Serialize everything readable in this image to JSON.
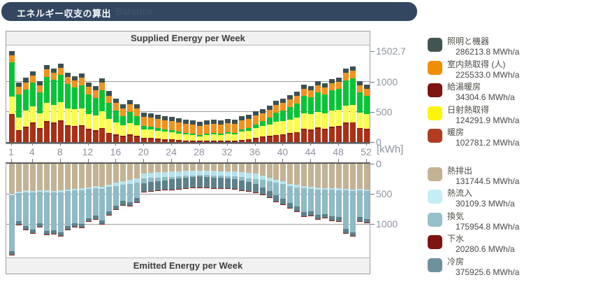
{
  "header": {
    "title": "エネルギー収支の算出",
    "watermark": "Balance"
  },
  "colors": {
    "header_bg": "#334760",
    "strip_bg": "#f1f1f1",
    "axis_text": "#8d94a0",
    "axis_line": "#5c5c5c",
    "grid": "#9b9b9b",
    "box_border": "#9e9e9e"
  },
  "legend": {
    "groups": [
      {
        "id": "supplied",
        "items": [
          {
            "label": "照明と機器",
            "value_text": "286213.8 MWh/a",
            "color": "#425553"
          },
          {
            "label": "室内熱取得 (人)",
            "value_text": "225533.0 MWh/a",
            "color": "#ef8e04"
          },
          {
            "label": "給湯暖房",
            "value_text": "34304.6 MWh/a",
            "color": "#7e1312"
          },
          {
            "label": "日射熱取得",
            "value_text": "124291.9 MWh/a",
            "color": "#fbf60b"
          },
          {
            "label": "暖房",
            "value_text": "102781.2 MWh/a",
            "color": "#b23d22"
          }
        ]
      },
      {
        "id": "emitted",
        "items": [
          {
            "label": "熱排出",
            "value_text": "131744.5 MWh/a",
            "color": "#c3b294"
          },
          {
            "label": "熱流入",
            "value_text": "30109.3 MWh/a",
            "color": "#c6edf5"
          },
          {
            "label": "換気",
            "value_text": "175954.8 MWh/a",
            "color": "#96c0cb"
          },
          {
            "label": "下水",
            "value_text": "20280.6 MWh/a",
            "color": "#7e1312"
          },
          {
            "label": "冷房",
            "value_text": "375925.6 MWh/a",
            "color": "#6f919d"
          }
        ]
      }
    ]
  },
  "chart_data": [
    {
      "type": "bar",
      "stacked": true,
      "title": "Supplied Energy per Week",
      "unit": "kWh",
      "x_label": "week",
      "x_ticks": [
        1,
        4,
        8,
        12,
        16,
        20,
        24,
        28,
        32,
        36,
        40,
        44,
        48,
        52
      ],
      "weeks": 52,
      "gridlines": [
        500,
        1000
      ],
      "y_axis": {
        "side": "right",
        "unit": "[kWh]",
        "ticks": [
          {
            "label": "0",
            "value": 0
          },
          {
            "label": "500",
            "value": 500
          },
          {
            "label": "1000",
            "value": 1000
          },
          {
            "label": "1502.7",
            "value": 1502.7
          }
        ]
      },
      "series": [
        {
          "name": "暖房",
          "color": "#a93016",
          "values": [
            448,
            180,
            230,
            300,
            210,
            330,
            300,
            340,
            260,
            250,
            255,
            195,
            175,
            215,
            135,
            105,
            85,
            105,
            85,
            50,
            50,
            40,
            25,
            25,
            10,
            0,
            0,
            0,
            0,
            0,
            0,
            0,
            0,
            20,
            30,
            52,
            72,
            85,
            101,
            111,
            129,
            147,
            199,
            190,
            222,
            202,
            232,
            245,
            299,
            309,
            217,
            199
          ]
        },
        {
          "name": "給湯暖房",
          "color": "#8c1a12",
          "values": [
            20,
            20,
            20,
            20,
            20,
            20,
            20,
            20,
            20,
            20,
            20,
            20,
            20,
            20,
            20,
            20,
            20,
            20,
            20,
            20,
            20,
            20,
            20,
            20,
            20,
            20,
            20,
            20,
            20,
            20,
            20,
            20,
            20,
            20,
            20,
            20,
            20,
            20,
            20,
            20,
            20,
            20,
            20,
            20,
            20,
            20,
            20,
            20,
            20,
            20,
            20,
            20
          ]
        },
        {
          "name": "日射熱取得",
          "color": "#fcfc4c",
          "values": [
            290,
            210,
            270,
            270,
            250,
            300,
            290,
            300,
            280,
            270,
            280,
            250,
            240,
            270,
            230,
            200,
            170,
            190,
            170,
            140,
            135,
            130,
            125,
            120,
            115,
            105,
            95,
            75,
            95,
            105,
            95,
            115,
            105,
            130,
            140,
            160,
            170,
            185,
            210,
            215,
            225,
            235,
            255,
            250,
            260,
            255,
            265,
            265,
            285,
            290,
            255,
            245
          ]
        },
        {
          "name": "unlabeled (green)",
          "color": "#07c436",
          "values": [
            560,
            380,
            350,
            395,
            340,
            430,
            420,
            450,
            400,
            360,
            380,
            320,
            300,
            350,
            260,
            200,
            150,
            180,
            150,
            60,
            50,
            45,
            40,
            35,
            30,
            28,
            25,
            20,
            25,
            28,
            25,
            30,
            28,
            40,
            45,
            60,
            80,
            110,
            150,
            170,
            200,
            230,
            290,
            280,
            320,
            310,
            340,
            350,
            420,
            440,
            330,
            300
          ]
        },
        {
          "name": "室内熱取得 (人)",
          "color": "#f0941e",
          "values": [
            120,
            120,
            120,
            120,
            120,
            120,
            120,
            120,
            120,
            120,
            125,
            125,
            125,
            125,
            125,
            125,
            135,
            135,
            135,
            150,
            150,
            150,
            150,
            150,
            150,
            150,
            150,
            150,
            150,
            150,
            150,
            150,
            150,
            150,
            150,
            150,
            135,
            135,
            135,
            135,
            135,
            135,
            120,
            120,
            120,
            120,
            120,
            120,
            120,
            120,
            120,
            120
          ]
        },
        {
          "name": "照明と機器",
          "color": "#3d5052",
          "values": [
            65,
            70,
            70,
            70,
            70,
            70,
            70,
            70,
            70,
            70,
            70,
            70,
            70,
            70,
            70,
            70,
            70,
            70,
            70,
            70,
            70,
            70,
            70,
            70,
            70,
            70,
            70,
            70,
            70,
            70,
            70,
            70,
            70,
            70,
            70,
            70,
            70,
            70,
            70,
            70,
            70,
            70,
            70,
            70,
            70,
            70,
            70,
            70,
            70,
            70,
            70,
            70
          ]
        }
      ]
    },
    {
      "type": "bar",
      "stacked": true,
      "inverted": true,
      "title": "Emitted Energy per Week",
      "unit": "kWh",
      "weeks": 52,
      "gridlines": [
        500,
        1000
      ],
      "y_axis": {
        "side": "right",
        "ticks": [
          {
            "label": "0",
            "value": 0
          },
          {
            "label": "500",
            "value": 500
          },
          {
            "label": "1000",
            "value": 1000
          }
        ]
      },
      "series": [
        {
          "name": "熱排出",
          "color": "#c3b294",
          "values": [
            500,
            460,
            445,
            450,
            435,
            445,
            450,
            445,
            430,
            420,
            410,
            390,
            370,
            380,
            345,
            315,
            285,
            270,
            240,
            160,
            150,
            140,
            135,
            130,
            125,
            120,
            118,
            115,
            118,
            120,
            122,
            125,
            128,
            140,
            150,
            165,
            195,
            230,
            265,
            295,
            330,
            350,
            370,
            385,
            395,
            400,
            405,
            410,
            420,
            430,
            415,
            425
          ]
        },
        {
          "name": "熱流入",
          "color": "#b5e3ee",
          "values": [
            20,
            25,
            25,
            25,
            25,
            25,
            25,
            25,
            25,
            25,
            30,
            30,
            35,
            35,
            40,
            50,
            60,
            65,
            70,
            80,
            85,
            90,
            88,
            85,
            80,
            78,
            75,
            70,
            72,
            75,
            75,
            78,
            80,
            85,
            88,
            85,
            75,
            60,
            50,
            45,
            40,
            38,
            35,
            30,
            30,
            28,
            25,
            25,
            22,
            22,
            25,
            22
          ]
        },
        {
          "name": "換気",
          "color": "#8fbac6",
          "values": [
            930,
            460,
            560,
            610,
            520,
            640,
            620,
            660,
            580,
            540,
            560,
            480,
            450,
            520,
            400,
            330,
            270,
            300,
            260,
            80,
            70,
            60,
            50,
            45,
            40,
            35,
            30,
            28,
            30,
            33,
            36,
            40,
            45,
            55,
            65,
            80,
            120,
            160,
            210,
            240,
            280,
            320,
            390,
            370,
            420,
            400,
            440,
            450,
            640,
            680,
            440,
            470
          ]
        },
        {
          "name": "冷房",
          "color": "#5d808c",
          "values": [
            60,
            60,
            58,
            60,
            58,
            60,
            60,
            60,
            58,
            56,
            55,
            55,
            55,
            55,
            55,
            60,
            65,
            65,
            70,
            140,
            148,
            155,
            160,
            165,
            170,
            173,
            175,
            178,
            176,
            173,
            170,
            166,
            162,
            155,
            148,
            140,
            120,
            105,
            95,
            88,
            82,
            78,
            75,
            72,
            70,
            68,
            66,
            65,
            62,
            60,
            64,
            60
          ]
        },
        {
          "name": "下水",
          "color": "#8c1a12",
          "values": [
            8,
            8,
            8,
            8,
            8,
            8,
            8,
            8,
            8,
            8,
            8,
            8,
            8,
            8,
            8,
            8,
            8,
            8,
            8,
            8,
            8,
            8,
            8,
            8,
            8,
            8,
            8,
            8,
            8,
            8,
            8,
            8,
            8,
            8,
            8,
            8,
            8,
            8,
            8,
            8,
            8,
            8,
            8,
            8,
            8,
            8,
            8,
            8,
            8,
            8,
            8,
            8
          ]
        }
      ]
    }
  ]
}
